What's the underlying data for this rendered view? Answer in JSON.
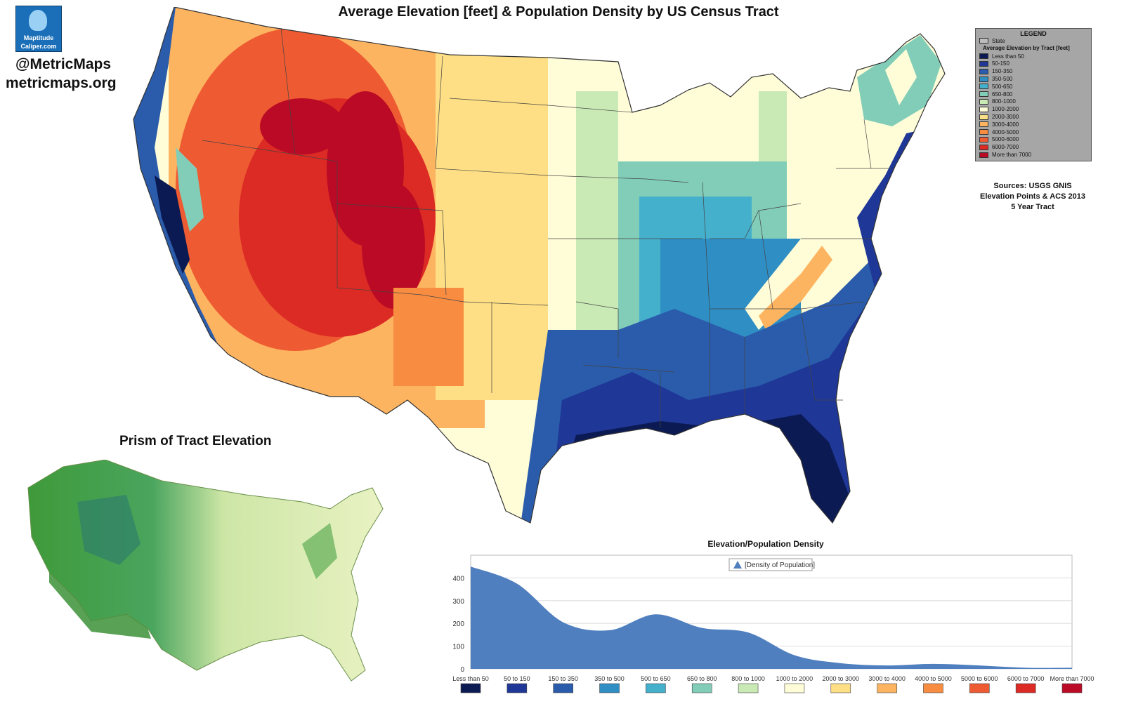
{
  "logo": {
    "line1": "Maptitude",
    "line2": "Caliper.com"
  },
  "handle": "@MetricMaps",
  "website": "metricmaps.org",
  "title": "Average Elevation [feet] & Population Density by US Census Tract",
  "legend": {
    "heading": "LEGEND",
    "state_label": "State",
    "subtitle": "Average Elevation by Tract [feet]",
    "classes": [
      {
        "label": "Less than 50",
        "color": "#0b1a52"
      },
      {
        "label": "50-150",
        "color": "#1f3796"
      },
      {
        "label": "150-350",
        "color": "#2a5cab"
      },
      {
        "label": "350-500",
        "color": "#2f8fc4"
      },
      {
        "label": "500-650",
        "color": "#45b0cc"
      },
      {
        "label": "650-800",
        "color": "#82cdb8"
      },
      {
        "label": "800-1000",
        "color": "#c9e9b5"
      },
      {
        "label": "1000-2000",
        "color": "#fffdd8"
      },
      {
        "label": "2000-3000",
        "color": "#fedf85"
      },
      {
        "label": "3000-4000",
        "color": "#fdb460"
      },
      {
        "label": "4000-5000",
        "color": "#f88d42"
      },
      {
        "label": "5000-6000",
        "color": "#ee5a32"
      },
      {
        "label": "6000-7000",
        "color": "#dc2a24"
      },
      {
        "label": "More than 7000",
        "color": "#bb0a25"
      }
    ]
  },
  "sources": [
    "Sources:  USGS GNIS",
    "Elevation Points & ACS 2013",
    "5 Year Tract"
  ],
  "prism_title": "Prism of Tract Elevation",
  "chart_data": {
    "type": "area",
    "title": "Elevation/Population Density",
    "legend_entry": "[Density of Population]",
    "legend_position": "top-center",
    "categories": [
      "Less than 50",
      "50 to 150",
      "150 to 350",
      "350 to 500",
      "500 to 650",
      "650 to 800",
      "800 to 1000",
      "1000 to 2000",
      "2000 to 3000",
      "3000 to 4000",
      "4000 to 5000",
      "5000 to 6000",
      "6000 to 7000",
      "More than 7000"
    ],
    "values": [
      450,
      375,
      205,
      170,
      240,
      180,
      160,
      60,
      25,
      15,
      22,
      15,
      5,
      5
    ],
    "ylim": [
      0,
      500
    ],
    "yticks": [
      0,
      100,
      200,
      300,
      400
    ],
    "grid": true,
    "fill_color": "#4f7fbf"
  }
}
